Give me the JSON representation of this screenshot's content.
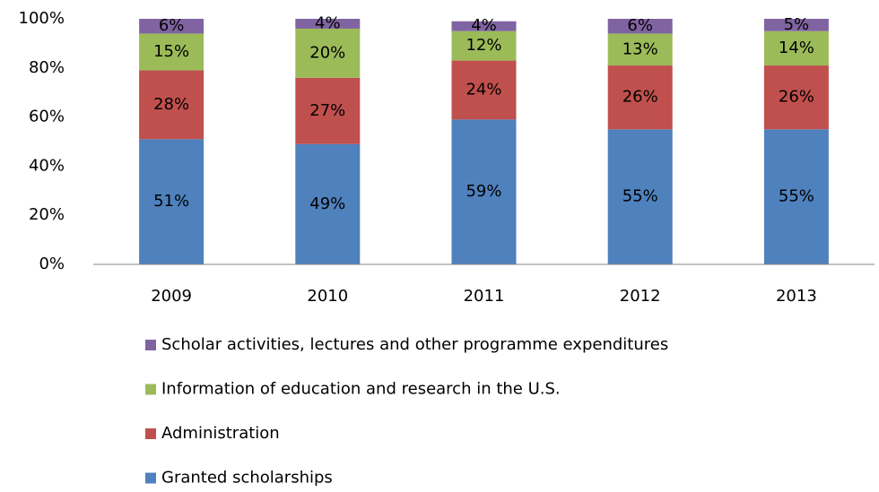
{
  "chart_data": {
    "type": "stacked_bar",
    "categories": [
      "2009",
      "2010",
      "2011",
      "2012",
      "2013"
    ],
    "series": [
      {
        "name": "Granted scholarships",
        "color": "#4f81bd",
        "values": [
          51,
          49,
          59,
          55,
          55
        ],
        "value_labels": [
          "51%",
          "49%",
          "59%",
          "55%",
          "55%"
        ]
      },
      {
        "name": "Administration",
        "color": "#c0504d",
        "values": [
          28,
          27,
          24,
          26,
          26
        ],
        "value_labels": [
          "28%",
          "27%",
          "24%",
          "26%",
          "26%"
        ]
      },
      {
        "name": "Information of education and research in the U.S.",
        "color": "#9bbb59",
        "values": [
          15,
          20,
          12,
          13,
          14
        ],
        "value_labels": [
          "15%",
          "20%",
          "12%",
          "13%",
          "14%"
        ]
      },
      {
        "name": "Scholar activities, lectures and other programme expenditures",
        "color": "#8064a2",
        "values": [
          6,
          4,
          4,
          6,
          5
        ],
        "value_labels": [
          "6%",
          "4%",
          "4%",
          "6%",
          "5%"
        ]
      }
    ],
    "ylim": [
      0,
      100
    ],
    "yticks": [
      {
        "value": 0,
        "label": "0%"
      },
      {
        "value": 20,
        "label": "20%"
      },
      {
        "value": 40,
        "label": "40%"
      },
      {
        "value": 60,
        "label": "60%"
      },
      {
        "value": 80,
        "label": "80%"
      },
      {
        "value": 100,
        "label": "100%"
      }
    ],
    "grid": false,
    "legend": "bottom"
  }
}
